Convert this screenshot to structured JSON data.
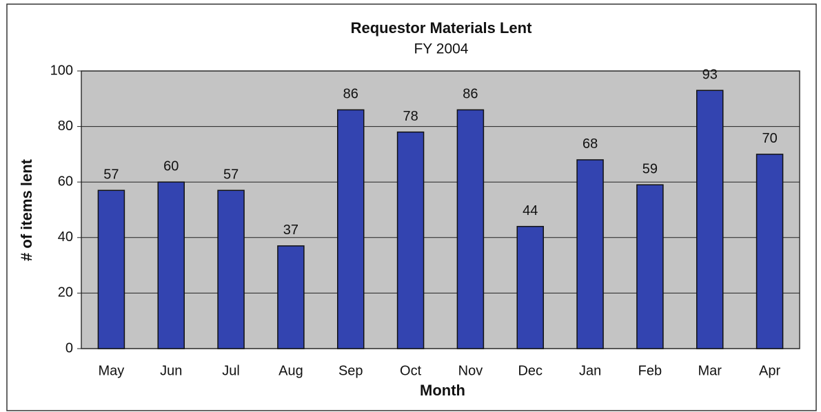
{
  "chart_data": {
    "type": "bar",
    "title": "Requestor Materials Lent",
    "subtitle": "FY 2004",
    "x_label": "Month",
    "y_label": "# of items lent",
    "categories": [
      "May",
      "Jun",
      "Jul",
      "Aug",
      "Sep",
      "Oct",
      "Nov",
      "Dec",
      "Jan",
      "Feb",
      "Mar",
      "Apr"
    ],
    "values": [
      57,
      60,
      57,
      37,
      86,
      78,
      86,
      44,
      68,
      59,
      93,
      70
    ],
    "color": "#3344b0",
    "ylim": [
      0,
      100
    ],
    "yticks": [
      0,
      20,
      40,
      60,
      80,
      100
    ],
    "grid": true
  }
}
